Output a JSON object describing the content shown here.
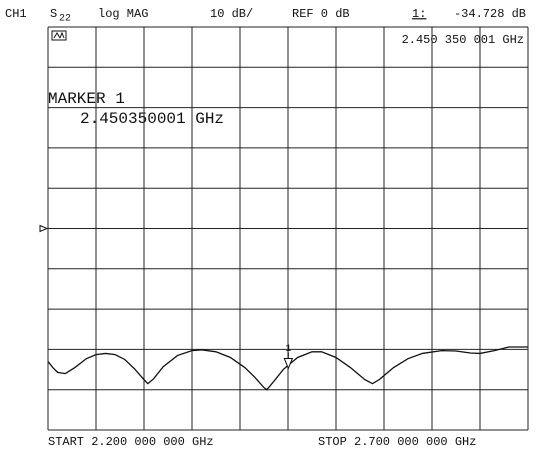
{
  "chart_data": {
    "type": "line",
    "channel": "CH1",
    "parameter": "S",
    "parameter_sub": "22",
    "format": "log MAG",
    "scale": "10 dB/",
    "reference": "REF 0 dB",
    "reference_level": 0,
    "start_label": "START 2.200 000 000 GHz",
    "stop_label": "STOP 2.700 000 000 GHz",
    "xlim": [
      2.2,
      2.7
    ],
    "ylim": [
      -50,
      50
    ],
    "xticks": [
      2.2,
      2.25,
      2.3,
      2.35,
      2.4,
      2.45,
      2.5,
      2.55,
      2.6,
      2.65,
      2.7
    ],
    "yticks": [
      -50,
      -40,
      -30,
      -20,
      -10,
      0,
      10,
      20,
      30,
      40,
      50
    ],
    "grid": true,
    "color": "#111111",
    "x": [
      2.2,
      2.205,
      2.21,
      2.218,
      2.228,
      2.24,
      2.25,
      2.26,
      2.27,
      2.28,
      2.29,
      2.3,
      2.304,
      2.31,
      2.32,
      2.335,
      2.35,
      2.36,
      2.375,
      2.39,
      2.405,
      2.415,
      2.425,
      2.428,
      2.435,
      2.445,
      2.46,
      2.475,
      2.485,
      2.5,
      2.515,
      2.53,
      2.538,
      2.545,
      2.56,
      2.575,
      2.59,
      2.61,
      2.625,
      2.64,
      2.65,
      2.665,
      2.68,
      2.7
    ],
    "values": [
      -33,
      -34.5,
      -35.7,
      -36,
      -34.5,
      -32.3,
      -31.3,
      -31,
      -31.3,
      -32.5,
      -34.8,
      -37.5,
      -38.5,
      -37.3,
      -34.3,
      -31.5,
      -30.3,
      -30.1,
      -30.6,
      -32,
      -34.5,
      -36.8,
      -39.5,
      -40,
      -38,
      -35,
      -32,
      -30.6,
      -30.6,
      -32,
      -34.5,
      -37.5,
      -38.5,
      -37.5,
      -34.5,
      -32.3,
      -31,
      -30.3,
      -30.4,
      -30.9,
      -31,
      -30.3,
      -29.4,
      -29.4
    ],
    "marker": {
      "name": "1",
      "readout_name": "1:",
      "x": 2.450350001,
      "y": -34.728,
      "readout": "-34.728 dB",
      "freq_readout": "2.450 350 001 GHz",
      "title": "MARKER 1",
      "freq_label": "2.450350001 GHz"
    }
  }
}
